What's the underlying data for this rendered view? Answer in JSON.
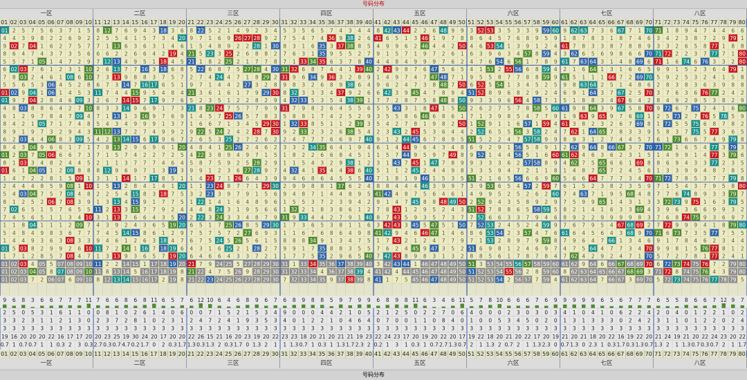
{
  "title": "号码分布",
  "zones": [
    "一区",
    "二区",
    "三区",
    "四区",
    "五区",
    "六区",
    "七区",
    "八区"
  ],
  "numbers": [
    "01",
    "02",
    "03",
    "04",
    "05",
    "06",
    "07",
    "08",
    "09",
    "10",
    "11",
    "12",
    "13",
    "14",
    "15",
    "16",
    "17",
    "18",
    "19",
    "20",
    "21",
    "22",
    "23",
    "24",
    "25",
    "26",
    "27",
    "28",
    "29",
    "30",
    "31",
    "32",
    "33",
    "34",
    "35",
    "36",
    "37",
    "38",
    "39",
    "40",
    "41",
    "42",
    "43",
    "44",
    "45",
    "46",
    "47",
    "48",
    "49",
    "50",
    "51",
    "52",
    "53",
    "54",
    "55",
    "56",
    "57",
    "58",
    "59",
    "60",
    "61",
    "62",
    "63",
    "64",
    "65",
    "66",
    "67",
    "68",
    "69",
    "70",
    "71",
    "72",
    "73",
    "74",
    "75",
    "76",
    "77",
    "78",
    "79",
    "80"
  ],
  "colors": {
    "cell_bg": "#ecebc4",
    "grid": "#c9c7a8",
    "red": "#c8181e",
    "blue": "#2e63a6",
    "green": "#4e8a2e",
    "teal": "#1b8f8a",
    "gray": "#8c8c8c",
    "zone_line": "#3a5aa8"
  },
  "stats": {
    "row1": [
      9,
      6,
      8,
      3,
      6,
      6,
      7,
      7,
      7,
      11,
      7,
      6,
      6,
      8,
      6,
      8,
      11,
      6,
      5,
      7,
      6,
      12,
      10,
      6,
      4,
      6,
      8,
      9,
      6,
      7,
      6,
      8,
      9,
      8,
      8,
      5,
      9,
      7,
      9,
      9,
      6,
      8,
      9,
      8,
      11,
      6,
      3,
      4,
      6,
      11,
      5,
      7,
      8,
      10,
      6,
      6,
      6,
      7,
      6,
      9,
      9,
      9,
      9,
      9,
      6,
      5,
      6,
      7,
      7,
      7,
      6,
      5,
      5,
      8,
      6,
      6,
      7,
      12,
      9,
      7
    ],
    "row2": [
      2,
      5,
      0,
      5,
      3,
      1,
      6,
      1,
      1,
      0,
      0,
      8,
      1,
      0,
      2,
      6,
      1,
      4,
      0,
      6,
      0,
      0,
      7,
      1,
      5,
      2,
      1,
      5,
      3,
      4,
      9,
      0,
      0,
      0,
      4,
      4,
      2,
      1,
      0,
      5,
      2,
      1,
      2,
      5,
      0,
      2,
      2,
      7,
      0,
      6,
      4,
      0,
      0,
      0,
      2,
      3,
      0,
      3,
      0,
      3,
      4,
      1,
      0,
      4,
      1,
      0,
      6,
      2,
      2,
      4,
      2,
      0,
      4,
      0,
      1,
      2,
      2,
      1,
      0,
      2
    ],
    "row3": [
      3,
      3,
      2,
      3,
      1,
      1,
      2,
      1,
      3,
      0,
      2,
      3,
      7,
      2,
      8,
      1,
      0,
      2,
      3,
      1,
      2,
      4,
      7,
      2,
      4,
      1,
      9,
      3,
      5,
      3,
      4,
      0,
      1,
      2,
      2,
      1,
      0,
      4,
      6,
      4,
      0,
      7,
      0,
      0,
      1,
      1,
      0,
      8,
      4,
      0,
      1,
      0,
      0,
      5,
      3,
      4,
      5,
      0,
      2,
      0,
      1,
      3,
      1,
      3,
      3,
      3,
      0,
      2,
      4,
      2,
      3,
      1,
      1,
      0,
      1,
      2,
      2,
      0,
      2,
      4
    ],
    "row4": [
      3,
      3,
      3,
      3,
      3,
      3,
      3,
      3,
      3,
      3,
      3,
      3,
      3,
      3,
      3,
      3,
      3,
      3,
      3,
      3,
      3,
      3,
      3,
      3,
      3,
      3,
      3,
      3,
      3,
      3,
      3,
      3,
      3,
      3,
      3,
      3,
      3,
      3,
      3,
      3,
      3,
      3,
      3,
      3,
      3,
      3,
      3,
      3,
      3,
      3,
      3,
      3,
      3,
      3,
      3,
      3,
      3,
      3,
      3,
      3,
      3,
      3,
      3,
      3,
      3,
      3,
      3,
      3,
      3,
      3,
      3,
      3,
      3,
      3,
      3,
      3,
      3,
      3,
      3,
      3
    ],
    "row5": [
      19,
      16,
      20,
      20,
      20,
      22,
      16,
      17,
      17,
      20,
      20,
      23,
      25,
      19,
      30,
      24,
      20,
      17,
      20,
      20,
      22,
      26,
      15,
      21,
      16,
      20,
      23,
      19,
      20,
      22,
      23,
      23,
      18,
      20,
      21,
      20,
      21,
      21,
      19,
      23,
      22,
      24,
      23,
      17,
      20,
      19,
      20,
      22,
      20,
      17,
      19,
      22,
      18,
      20,
      21,
      20,
      22,
      17,
      20,
      19,
      21,
      20,
      21,
      18,
      20,
      22,
      16,
      19,
      22,
      20,
      21,
      24,
      19,
      21,
      20,
      22,
      24,
      23,
      20,
      22
    ],
    "row6": [
      0.7,
      1.0,
      0.7,
      0.7,
      1.0,
      1.0,
      0.3,
      2.0,
      3.0,
      0.3,
      2.7,
      0.3,
      0.7,
      4.7,
      0.2,
      1.7,
      0.0,
      2.0,
      0.3,
      1.7,
      1.3,
      0.3,
      1.3,
      2.0,
      0.3,
      1.7,
      0.0,
      1.3,
      2.0,
      1.0,
      1.0,
      1.3,
      0.7,
      1.0,
      0.3,
      1.0,
      1.3,
      1.7,
      2.3,
      2.0,
      0.2,
      1.0,
      3.0,
      1.0,
      0.3,
      1.0,
      0.7,
      2.7,
      1.3,
      0.7,
      2.0,
      1.0,
      1.3,
      2.0,
      0.7,
      2.0,
      1.0,
      1.3,
      2.3,
      0.0,
      0.7,
      1.3,
      0.0,
      2.3,
      1.0,
      0.3,
      1.7,
      0.3,
      1.3,
      0.7,
      1.3,
      2.0,
      1.0,
      1.3,
      0.7,
      0.3,
      0.7,
      2.0,
      1.0,
      1.7
    ]
  }
}
